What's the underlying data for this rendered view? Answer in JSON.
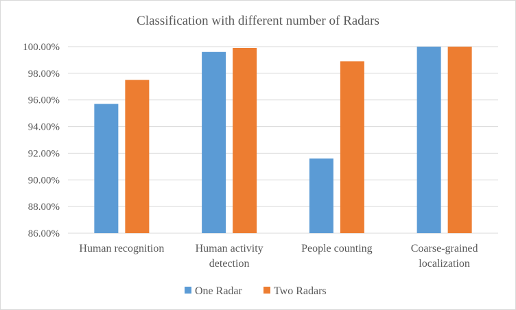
{
  "chart_data": {
    "type": "bar",
    "title": "Classification with different number of  Radars",
    "categories": [
      [
        "Human recognition"
      ],
      [
        "Human activity",
        "detection"
      ],
      [
        "People counting"
      ],
      [
        "Coarse-grained",
        "localization"
      ]
    ],
    "series": [
      {
        "name": "One Radar",
        "color": "#5b9bd5",
        "values": [
          95.7,
          99.6,
          91.6,
          100.0
        ]
      },
      {
        "name": "Two Radars",
        "color": "#ed7d31",
        "values": [
          97.5,
          99.9,
          98.9,
          100.0
        ]
      }
    ],
    "ylim": [
      86,
      100
    ],
    "yticks": [
      "86.00%",
      "88.00%",
      "90.00%",
      "92.00%",
      "94.00%",
      "96.00%",
      "98.00%",
      "100.00%"
    ],
    "ytick_values": [
      86,
      88,
      90,
      92,
      94,
      96,
      98,
      100
    ],
    "grid": true,
    "legend_position": "bottom"
  }
}
